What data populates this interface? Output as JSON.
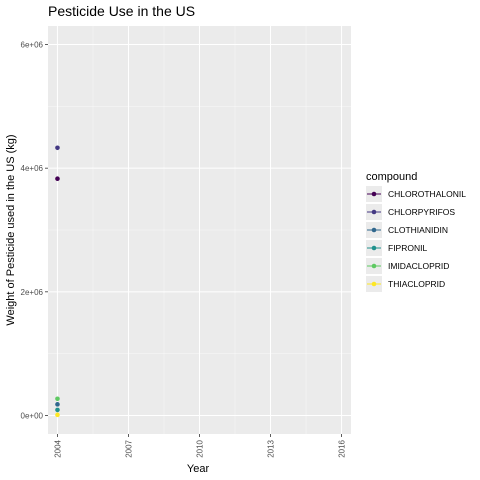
{
  "chart_data": {
    "type": "scatter",
    "title": "Pesticide Use in the US",
    "xlabel": "Year",
    "ylabel": "Weight of Pesticide used in the US (kg)",
    "xlim": [
      2003.6,
      2016.4
    ],
    "ylim": [
      -300000,
      6300000
    ],
    "x_ticks": [
      2004,
      2007,
      2010,
      2013,
      2016
    ],
    "x_tick_labels": [
      "2004",
      "2007",
      "2010",
      "2013",
      "2016"
    ],
    "y_ticks": [
      0,
      2000000,
      4000000,
      6000000
    ],
    "y_tick_labels": [
      "0e+00",
      "2e+06",
      "4e+06",
      "6e+06"
    ],
    "grid": true,
    "legend": {
      "title": "compound",
      "placement": "right"
    },
    "series": [
      {
        "name": "CHLOROTHALONIL",
        "color": "#440154",
        "points": [
          {
            "x": 2004,
            "y": 3830000
          }
        ]
      },
      {
        "name": "CHLORPYRIFOS",
        "color": "#443983",
        "points": [
          {
            "x": 2004,
            "y": 4330000
          }
        ]
      },
      {
        "name": "CLOTHIANIDIN",
        "color": "#31688e",
        "points": [
          {
            "x": 2004,
            "y": 180000
          }
        ]
      },
      {
        "name": "FIPRONIL",
        "color": "#21918c",
        "points": [
          {
            "x": 2004,
            "y": 90000
          }
        ]
      },
      {
        "name": "IMIDACLOPRID",
        "color": "#5ec962",
        "points": [
          {
            "x": 2004,
            "y": 270000
          }
        ]
      },
      {
        "name": "THIACLOPRID",
        "color": "#fde725",
        "points": [
          {
            "x": 2004,
            "y": 10000
          }
        ]
      }
    ],
    "colors": {
      "panel_background": "#ebebeb",
      "grid_major": "#ffffff",
      "tick_text": "#4d4d4d"
    }
  }
}
